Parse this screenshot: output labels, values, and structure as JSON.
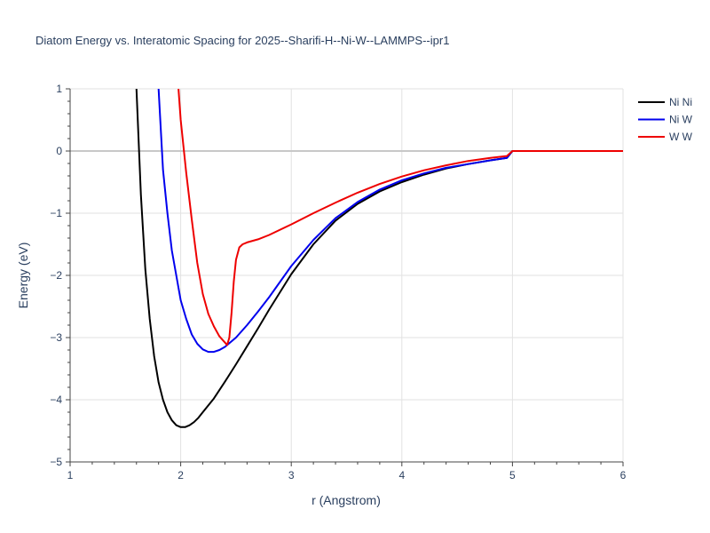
{
  "chart_data": {
    "type": "line",
    "title": "Diatom Energy vs. Interatomic Spacing for 2025--Sharifi-H--Ni-W--LAMMPS--ipr1",
    "xlabel": "r (Angstrom)",
    "ylabel": "Energy (eV)",
    "xlim": [
      1,
      6
    ],
    "ylim": [
      -5,
      1
    ],
    "xticks": [
      1,
      2,
      3,
      4,
      5,
      6
    ],
    "yticks": [
      -5,
      -4,
      -3,
      -2,
      -1,
      0,
      1
    ],
    "xtick_labels": [
      "1",
      "2",
      "3",
      "4",
      "5",
      "6"
    ],
    "ytick_labels": [
      "−5",
      "−4",
      "−3",
      "−2",
      "−1",
      "0",
      "1"
    ],
    "grid": true,
    "legend_position": "top-right",
    "series": [
      {
        "name": "Ni Ni",
        "color": "#000000",
        "x": [
          1.6,
          1.64,
          1.68,
          1.72,
          1.76,
          1.8,
          1.84,
          1.88,
          1.92,
          1.96,
          2.0,
          2.04,
          2.08,
          2.12,
          2.16,
          2.2,
          2.3,
          2.4,
          2.5,
          2.6,
          2.7,
          2.8,
          3.0,
          3.2,
          3.4,
          3.6,
          3.8,
          4.0,
          4.2,
          4.4,
          4.6,
          4.8,
          4.95,
          5.0,
          5.5,
          6.0
        ],
        "y": [
          1.0,
          -0.7,
          -1.9,
          -2.7,
          -3.3,
          -3.72,
          -4.0,
          -4.2,
          -4.33,
          -4.41,
          -4.44,
          -4.44,
          -4.41,
          -4.36,
          -4.29,
          -4.2,
          -3.98,
          -3.71,
          -3.43,
          -3.14,
          -2.85,
          -2.55,
          -1.98,
          -1.5,
          -1.12,
          -0.85,
          -0.65,
          -0.5,
          -0.38,
          -0.28,
          -0.21,
          -0.15,
          -0.11,
          0.0,
          0.0,
          0.0
        ]
      },
      {
        "name": "Ni W",
        "color": "#0000ee",
        "x": [
          1.8,
          1.84,
          1.88,
          1.92,
          1.96,
          2.0,
          2.05,
          2.1,
          2.15,
          2.2,
          2.25,
          2.3,
          2.35,
          2.4,
          2.5,
          2.6,
          2.7,
          2.8,
          3.0,
          3.2,
          3.4,
          3.6,
          3.8,
          4.0,
          4.2,
          4.4,
          4.6,
          4.8,
          4.95,
          5.0,
          5.5,
          6.0
        ],
        "y": [
          1.0,
          -0.3,
          -1.0,
          -1.6,
          -2.0,
          -2.4,
          -2.7,
          -2.95,
          -3.1,
          -3.19,
          -3.23,
          -3.23,
          -3.2,
          -3.15,
          -3.0,
          -2.8,
          -2.58,
          -2.35,
          -1.85,
          -1.43,
          -1.08,
          -0.82,
          -0.62,
          -0.47,
          -0.36,
          -0.27,
          -0.21,
          -0.15,
          -0.11,
          0.0,
          0.0,
          0.0
        ]
      },
      {
        "name": "W W",
        "color": "#ee0000",
        "x": [
          1.98,
          2.0,
          2.05,
          2.1,
          2.15,
          2.2,
          2.25,
          2.3,
          2.35,
          2.4,
          2.42,
          2.44,
          2.46,
          2.48,
          2.5,
          2.53,
          2.56,
          2.6,
          2.7,
          2.8,
          3.0,
          3.2,
          3.4,
          3.6,
          3.8,
          4.0,
          4.2,
          4.4,
          4.6,
          4.8,
          4.95,
          5.0,
          5.5,
          6.0
        ],
        "y": [
          1.0,
          0.5,
          -0.35,
          -1.1,
          -1.8,
          -2.3,
          -2.62,
          -2.82,
          -2.98,
          -3.08,
          -3.12,
          -3.0,
          -2.6,
          -2.1,
          -1.75,
          -1.55,
          -1.5,
          -1.47,
          -1.42,
          -1.35,
          -1.18,
          -1.0,
          -0.83,
          -0.67,
          -0.53,
          -0.41,
          -0.31,
          -0.23,
          -0.16,
          -0.11,
          -0.08,
          0.0,
          0.0,
          0.0
        ]
      }
    ]
  }
}
